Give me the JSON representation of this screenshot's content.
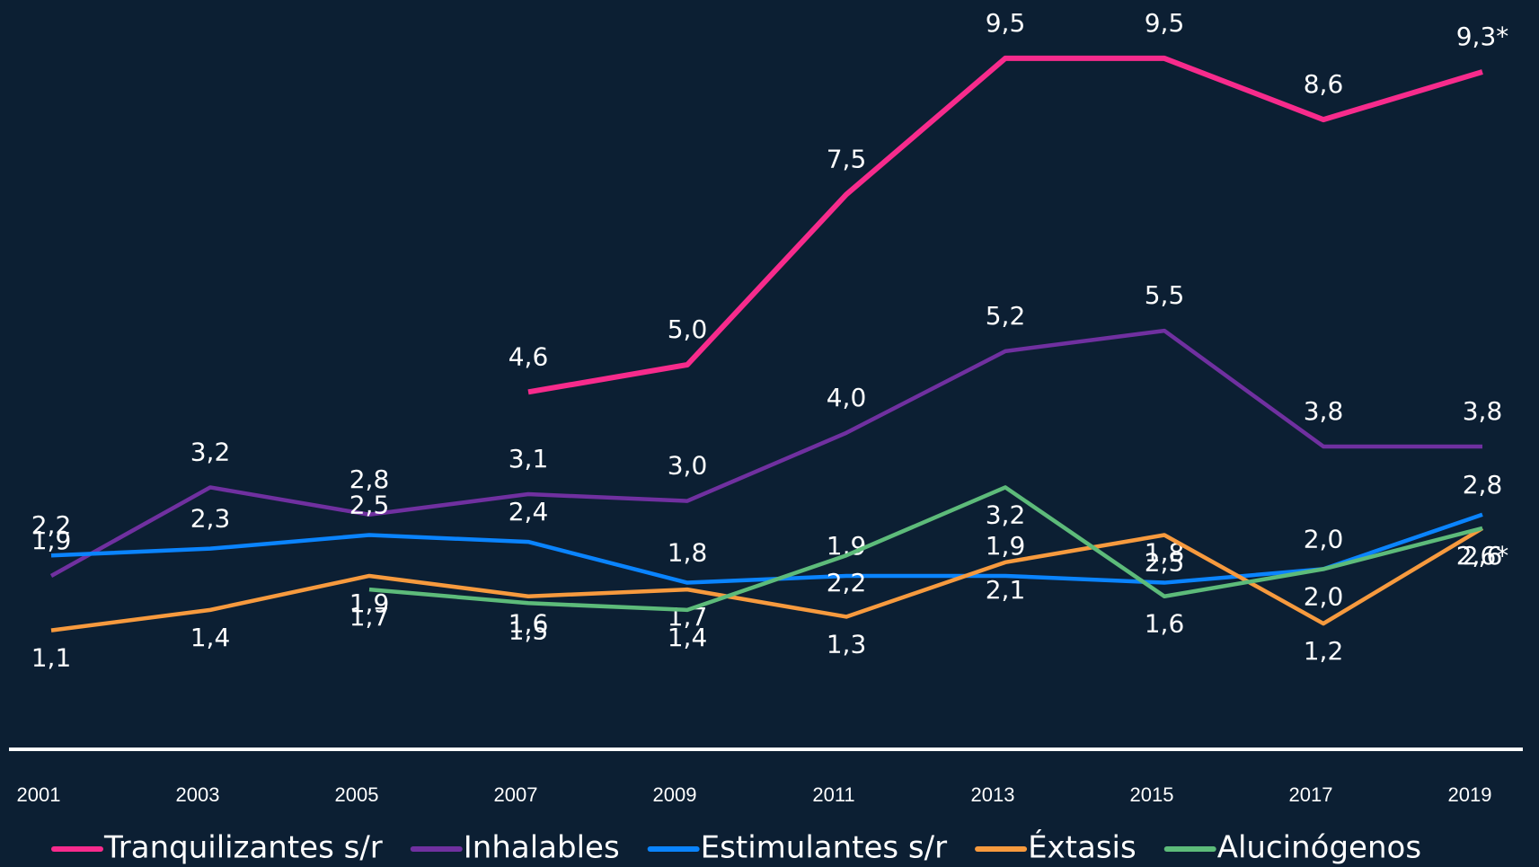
{
  "chart_data": {
    "type": "line",
    "categories": [
      "2001",
      "2003",
      "2005",
      "2007",
      "2009",
      "2011",
      "2013",
      "2015",
      "2017",
      "2019"
    ],
    "ylim": [
      0,
      10
    ],
    "legend": "bottom",
    "series": [
      {
        "name": "Tranquilizantes s/r",
        "color": "#f72b8c",
        "values": [
          null,
          null,
          null,
          4.6,
          5.0,
          7.5,
          9.5,
          9.5,
          8.6,
          9.3
        ],
        "value_labels": [
          null,
          null,
          null,
          "4,6",
          "5,0",
          "7,5",
          "9,5",
          "9,5",
          "8,6",
          "9,3*"
        ]
      },
      {
        "name": "Inhalables",
        "color": "#7030a0",
        "values": [
          1.9,
          3.2,
          2.8,
          3.1,
          3.0,
          4.0,
          5.2,
          5.5,
          3.8,
          3.8
        ],
        "value_labels": [
          "1,9",
          "3,2",
          "2,8",
          "3,1",
          "3,0",
          "4,0",
          "5,2",
          "5,5",
          "3,8",
          "3,8"
        ]
      },
      {
        "name": "Estimulantes s/r",
        "color": "#0a84ff",
        "values": [
          2.2,
          2.3,
          2.5,
          2.4,
          1.8,
          1.9,
          1.9,
          1.8,
          2.0,
          2.8
        ],
        "value_labels": [
          "2,2",
          "2,3",
          "2,5",
          "2,4",
          "1,8",
          "1,9",
          "1,9",
          "1,8",
          "2,0",
          "2,8"
        ]
      },
      {
        "name": "Éxtasis",
        "color": "#f79a3e",
        "values": [
          1.1,
          1.4,
          1.9,
          1.6,
          1.7,
          1.3,
          2.1,
          2.5,
          1.2,
          2.6
        ],
        "value_labels": [
          "1,1",
          "1,4",
          "1,9",
          "1,6",
          "1,7",
          "1,3",
          "2,1",
          "2,5",
          "1,2",
          "2,6"
        ]
      },
      {
        "name": "Alucinógenos",
        "color": "#5dbb7a",
        "values": [
          null,
          null,
          1.7,
          1.5,
          1.4,
          2.2,
          3.2,
          1.6,
          2.0,
          2.6
        ],
        "value_labels": [
          null,
          null,
          "1,7",
          "1,5",
          "1,4",
          "2,2",
          "3,2",
          "1,6",
          "2,0",
          "2,6*"
        ]
      }
    ]
  }
}
